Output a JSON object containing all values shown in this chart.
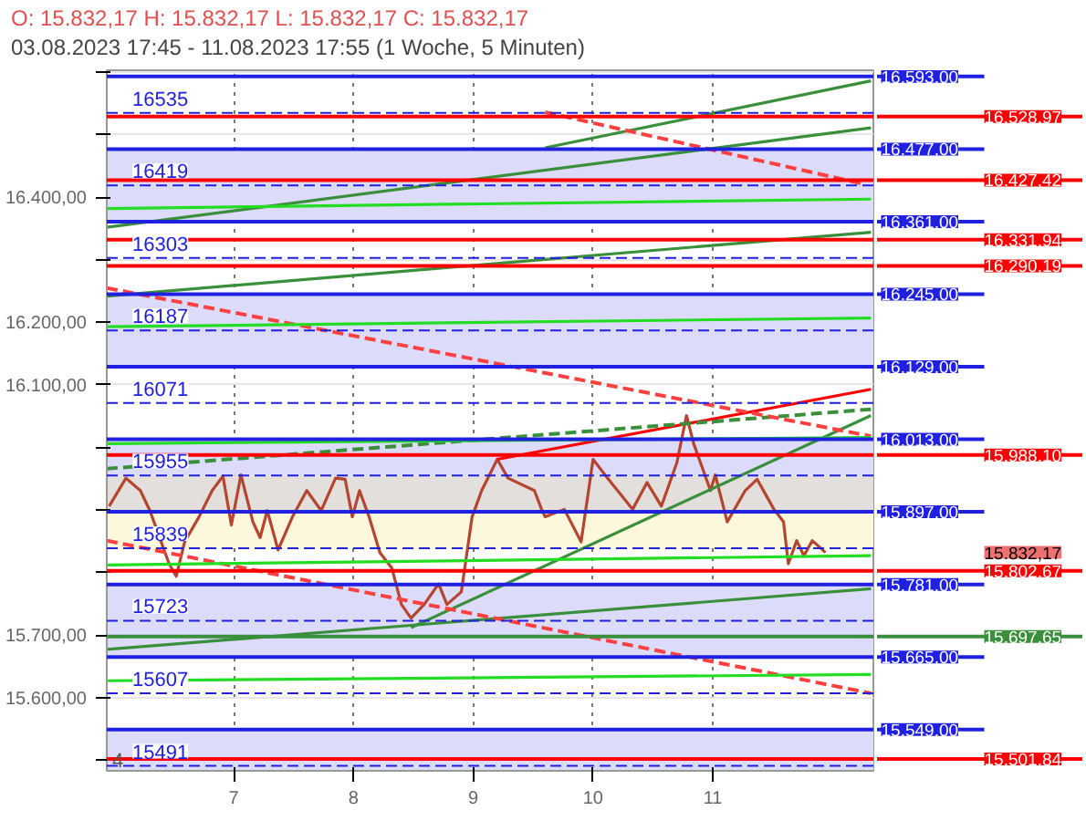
{
  "chart_data": {
    "type": "line",
    "title": "O: 15.832,17  H: 15.832,17  L: 15.832,17  C: 15.832,17",
    "subtitle": "03.08.2023 17:45 - 11.08.2023 17:55   (1 Woche, 5 Minuten)",
    "xlim": [
      5.94,
      12.34
    ],
    "xticks": [
      7,
      8,
      9,
      10,
      11
    ],
    "ylim": [
      15483,
      16603
    ],
    "yticks": [
      {
        "value": 15500,
        "label": null
      },
      {
        "value": 15600,
        "label": "15.600,00"
      },
      {
        "value": 15700,
        "label": "15.700,00"
      },
      {
        "value": 15800,
        "label": null
      },
      {
        "value": 15900,
        "label": null
      },
      {
        "value": 16000,
        "label": null
      },
      {
        "value": 16100,
        "label": "16.100,00"
      },
      {
        "value": 16200,
        "label": "16.200,00"
      },
      {
        "value": 16300,
        "label": null
      },
      {
        "value": 16400,
        "label": "16.400,00"
      },
      {
        "value": 16500,
        "label": null
      },
      {
        "value": 16600,
        "label": null
      }
    ],
    "grid": true,
    "bands": [
      {
        "axis": "y",
        "from": 16361,
        "to": 16477,
        "color": "#dcdcfa"
      },
      {
        "axis": "y",
        "from": 16129,
        "to": 16245,
        "color": "#dcdcfa"
      },
      {
        "axis": "y",
        "from": 15955,
        "to": 16013,
        "color": "#dcdcfa"
      },
      {
        "axis": "y",
        "from": 15897,
        "to": 15955,
        "color": "#e3dfdc"
      },
      {
        "axis": "y",
        "from": 15839,
        "to": 15897,
        "color": "#fdf8dc"
      },
      {
        "axis": "y",
        "from": 15665,
        "to": 15781,
        "color": "#dcdcfa"
      },
      {
        "axis": "y",
        "from": 15483,
        "to": 15549,
        "color": "#dcdcfa"
      }
    ],
    "ref_lines": [
      {
        "axis": "y",
        "value": 16535,
        "label": "16535",
        "color": "#2020e0",
        "line_style": "dashed"
      },
      {
        "axis": "y",
        "value": 16419,
        "label": "16419",
        "color": "#2020e0",
        "line_style": "dashed"
      },
      {
        "axis": "y",
        "value": 16303,
        "label": "16303",
        "color": "#2020e0",
        "line_style": "dashed"
      },
      {
        "axis": "y",
        "value": 16187,
        "label": "16187",
        "color": "#2020e0",
        "line_style": "dashed"
      },
      {
        "axis": "y",
        "value": 16071,
        "label": "16071",
        "color": "#2020e0",
        "line_style": "dashed"
      },
      {
        "axis": "y",
        "value": 15955,
        "label": "15955",
        "color": "#2020e0",
        "line_style": "dashed"
      },
      {
        "axis": "y",
        "value": 15839,
        "label": "15839",
        "color": "#2020e0",
        "line_style": "dashed"
      },
      {
        "axis": "y",
        "value": 15723,
        "label": "15723",
        "color": "#2020e0",
        "line_style": "dashed"
      },
      {
        "axis": "y",
        "value": 15607,
        "label": "15607",
        "color": "#2020e0",
        "line_style": "dashed"
      },
      {
        "axis": "y",
        "value": 15491,
        "label": "15491",
        "color": "#2020e0",
        "line_style": "dashed"
      },
      {
        "axis": "y",
        "value": 16593,
        "label": "16.593,00",
        "color": "#2020e0",
        "line_style": "solid"
      },
      {
        "axis": "y",
        "value": 16477,
        "label": "16.477,00",
        "color": "#2020e0",
        "line_style": "solid"
      },
      {
        "axis": "y",
        "value": 16361,
        "label": "16.361,00",
        "color": "#2020e0",
        "line_style": "solid"
      },
      {
        "axis": "y",
        "value": 16245,
        "label": "16.245,00",
        "color": "#2020e0",
        "line_style": "solid"
      },
      {
        "axis": "y",
        "value": 16129,
        "label": "16.129,00",
        "color": "#2020e0",
        "line_style": "solid"
      },
      {
        "axis": "y",
        "value": 16013,
        "label": "16.013,00",
        "color": "#2020e0",
        "line_style": "solid"
      },
      {
        "axis": "y",
        "value": 15897,
        "label": "15.897,00",
        "color": "#2020e0",
        "line_style": "solid"
      },
      {
        "axis": "y",
        "value": 15781,
        "label": "15.781,00",
        "color": "#2020e0",
        "line_style": "solid"
      },
      {
        "axis": "y",
        "value": 15665,
        "label": "15.665,00",
        "color": "#2020e0",
        "line_style": "solid"
      },
      {
        "axis": "y",
        "value": 15549,
        "label": "15.549,00",
        "color": "#2020e0",
        "line_style": "solid"
      },
      {
        "axis": "y",
        "value": 16528.97,
        "label": "16.528,97",
        "color": "#ff0000",
        "line_style": "solid"
      },
      {
        "axis": "y",
        "value": 16427.42,
        "label": "16.427,42",
        "color": "#ff0000",
        "line_style": "solid"
      },
      {
        "axis": "y",
        "value": 16331.94,
        "label": "16.331,94",
        "color": "#ff0000",
        "line_style": "solid"
      },
      {
        "axis": "y",
        "value": 16290.19,
        "label": "16.290,19",
        "color": "#ff0000",
        "line_style": "solid"
      },
      {
        "axis": "y",
        "value": 15988.1,
        "label": "15.988,10",
        "color": "#ff0000",
        "line_style": "solid"
      },
      {
        "axis": "y",
        "value": 15802.67,
        "label": "15.802,67",
        "color": "#ff0000",
        "line_style": "solid"
      },
      {
        "axis": "y",
        "value": 15697.65,
        "label": "15.697,65",
        "color": "#3a8f3a",
        "line_style": "solid"
      },
      {
        "axis": "y",
        "value": 15501.84,
        "label": "15.501,84",
        "color": "#ff0000",
        "line_style": "solid"
      }
    ],
    "annotations": [
      "15.832,17",
      "4"
    ],
    "series": [
      {
        "color": "#b5452f",
        "line_style": "solid",
        "x": [
          5.96,
          6.1,
          6.22,
          6.3,
          6.46,
          6.52,
          6.59,
          6.71,
          6.82,
          6.91,
          6.98,
          7.06,
          7.16,
          7.22,
          7.28,
          7.37,
          7.49,
          7.61,
          7.73,
          7.85,
          7.93,
          7.99,
          8.05,
          8.13,
          8.22,
          8.32,
          8.4,
          8.48,
          8.59,
          8.71,
          8.78,
          8.9,
          8.99,
          9.07,
          9.2,
          9.29,
          9.51,
          9.57,
          9.6,
          9.76,
          9.9,
          10.0,
          10.12,
          10.33,
          10.45,
          10.57,
          10.7,
          10.78,
          10.84,
          10.98,
          11.02,
          11.12,
          11.27,
          11.37,
          11.51,
          11.59,
          11.63,
          11.7,
          11.76,
          11.83,
          11.94
        ],
        "values": [
          15906,
          15951,
          15931,
          15899,
          15814,
          15794,
          15849,
          15889,
          15931,
          15954,
          15876,
          15956,
          15881,
          15856,
          15899,
          15836,
          15889,
          15931,
          15899,
          15951,
          15949,
          15889,
          15931,
          15889,
          15832,
          15807,
          15749,
          15727,
          15749,
          15782,
          15749,
          15769,
          15889,
          15931,
          15981,
          15951,
          15931,
          15901,
          15889,
          15901,
          15849,
          15981,
          15951,
          15901,
          15944,
          15906,
          15976,
          16051,
          16006,
          15931,
          15956,
          15881,
          15931,
          15949,
          15901,
          15881,
          15814,
          15851,
          15827,
          15851,
          15832.17
        ]
      },
      {
        "color": "#ff0000",
        "line_style": "solid",
        "x": [
          9.2,
          12.32
        ],
        "values": [
          15981,
          16093
        ]
      },
      {
        "color": "#3a8f3a",
        "line_style": "dashed",
        "x": [
          5.94,
          12.32
        ],
        "values": [
          15966,
          16061
        ]
      },
      {
        "color": "#3a8f3a",
        "line_style": "solid",
        "x": [
          8.48,
          12.32
        ],
        "values": [
          15712,
          16051
        ]
      },
      {
        "color": "#3a8f3a",
        "line_style": "solid",
        "x": [
          5.94,
          12.32
        ],
        "values": [
          15677,
          15774
        ]
      },
      {
        "color": "#3a8f3a",
        "line_style": "solid",
        "x": [
          5.94,
          12.32
        ],
        "values": [
          16242,
          16344
        ]
      },
      {
        "color": "#3a8f3a",
        "line_style": "solid",
        "x": [
          5.94,
          12.32
        ],
        "values": [
          16352,
          16511
        ]
      },
      {
        "color": "#3a8f3a",
        "line_style": "solid",
        "x": [
          9.6,
          12.32
        ],
        "values": [
          16479,
          16586
        ]
      },
      {
        "color": "#ff4040",
        "line_style": "dashed",
        "x": [
          5.94,
          12.32
        ],
        "values": [
          16255,
          16018
        ]
      },
      {
        "color": "#ff4040",
        "line_style": "dashed",
        "x": [
          5.94,
          12.32
        ],
        "values": [
          15851,
          15607
        ]
      },
      {
        "color": "#ff4040",
        "line_style": "dashed",
        "x": [
          9.6,
          12.24
        ],
        "values": [
          16536,
          16422
        ]
      },
      {
        "color": "#22dd22",
        "line_style": "solid",
        "x": [
          5.94,
          12.32
        ],
        "values": [
          16382,
          16397
        ]
      },
      {
        "color": "#22dd22",
        "line_style": "solid",
        "x": [
          5.94,
          12.32
        ],
        "values": [
          16193,
          16207
        ]
      },
      {
        "color": "#22dd22",
        "line_style": "solid",
        "x": [
          5.94,
          12.32
        ],
        "values": [
          16006,
          16016
        ]
      },
      {
        "color": "#22dd22",
        "line_style": "solid",
        "x": [
          5.94,
          12.32
        ],
        "values": [
          15812,
          15827
        ]
      },
      {
        "color": "#22dd22",
        "line_style": "solid",
        "x": [
          5.94,
          12.32
        ],
        "values": [
          15627,
          15637
        ]
      }
    ]
  }
}
